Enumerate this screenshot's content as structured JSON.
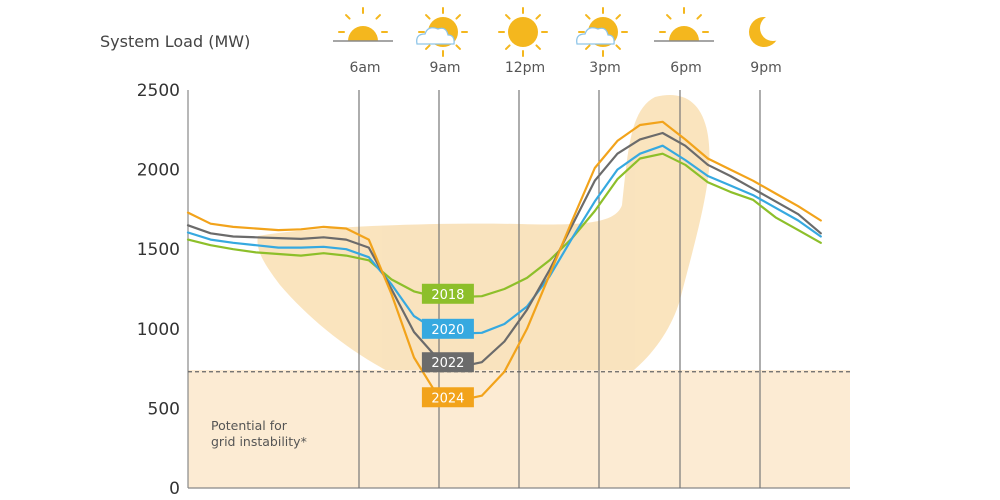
{
  "chart_data": {
    "type": "line",
    "ylabel": "System Load (MW)",
    "yticks": [
      "2500",
      "2000",
      "1500",
      "1000",
      "500",
      "0"
    ],
    "ylim": [
      0,
      2500
    ],
    "time_labels": [
      "6am",
      "9am",
      "12pm",
      "3pm",
      "6pm",
      "9pm"
    ],
    "time_icons": [
      "sunrise-icon",
      "partly-cloudy-icon",
      "sun-icon",
      "partly-cloudy-icon",
      "sunset-icon",
      "moon-icon"
    ],
    "threshold": 730,
    "threshold_note": [
      "Potential for",
      "grid instability*"
    ],
    "series": [
      {
        "name": "2018",
        "color": "#8dbf2a",
        "points": [
          [
            0,
            1560
          ],
          [
            1,
            1525
          ],
          [
            2,
            1500
          ],
          [
            3,
            1480
          ],
          [
            4,
            1470
          ],
          [
            5,
            1460
          ],
          [
            6,
            1475
          ],
          [
            7,
            1460
          ],
          [
            8,
            1430
          ],
          [
            9,
            1310
          ],
          [
            10,
            1235
          ],
          [
            11,
            1200
          ],
          [
            12,
            1200
          ],
          [
            13,
            1205
          ],
          [
            14,
            1250
          ],
          [
            15,
            1320
          ],
          [
            16,
            1430
          ],
          [
            17,
            1570
          ],
          [
            18,
            1740
          ],
          [
            19,
            1940
          ],
          [
            20,
            2070
          ],
          [
            21,
            2100
          ],
          [
            22,
            2030
          ],
          [
            23,
            1920
          ],
          [
            24,
            1860
          ],
          [
            25,
            1810
          ],
          [
            26,
            1700
          ],
          [
            27,
            1620
          ],
          [
            28,
            1540
          ]
        ]
      },
      {
        "name": "2020",
        "color": "#36a9e0",
        "points": [
          [
            0,
            1605
          ],
          [
            1,
            1560
          ],
          [
            2,
            1540
          ],
          [
            3,
            1525
          ],
          [
            4,
            1510
          ],
          [
            5,
            1510
          ],
          [
            6,
            1515
          ],
          [
            7,
            1500
          ],
          [
            8,
            1450
          ],
          [
            9,
            1280
          ],
          [
            10,
            1080
          ],
          [
            11,
            990
          ],
          [
            12,
            970
          ],
          [
            13,
            975
          ],
          [
            14,
            1030
          ],
          [
            15,
            1140
          ],
          [
            16,
            1330
          ],
          [
            17,
            1570
          ],
          [
            18,
            1800
          ],
          [
            19,
            2000
          ],
          [
            20,
            2100
          ],
          [
            21,
            2150
          ],
          [
            22,
            2060
          ],
          [
            23,
            1960
          ],
          [
            24,
            1900
          ],
          [
            25,
            1840
          ],
          [
            26,
            1760
          ],
          [
            27,
            1680
          ],
          [
            28,
            1580
          ]
        ]
      },
      {
        "name": "2022",
        "color": "#6b6b6b",
        "points": [
          [
            0,
            1650
          ],
          [
            1,
            1600
          ],
          [
            2,
            1580
          ],
          [
            3,
            1575
          ],
          [
            4,
            1570
          ],
          [
            5,
            1565
          ],
          [
            6,
            1575
          ],
          [
            7,
            1560
          ],
          [
            8,
            1510
          ],
          [
            9,
            1250
          ],
          [
            10,
            980
          ],
          [
            11,
            820
          ],
          [
            12,
            760
          ],
          [
            13,
            790
          ],
          [
            14,
            920
          ],
          [
            15,
            1120
          ],
          [
            16,
            1370
          ],
          [
            17,
            1650
          ],
          [
            18,
            1930
          ],
          [
            19,
            2100
          ],
          [
            20,
            2190
          ],
          [
            21,
            2230
          ],
          [
            22,
            2150
          ],
          [
            23,
            2030
          ],
          [
            24,
            1960
          ],
          [
            25,
            1880
          ],
          [
            26,
            1800
          ],
          [
            27,
            1720
          ],
          [
            28,
            1600
          ]
        ]
      },
      {
        "name": "2024",
        "color": "#f2a31b",
        "points": [
          [
            0,
            1730
          ],
          [
            1,
            1660
          ],
          [
            2,
            1640
          ],
          [
            3,
            1630
          ],
          [
            4,
            1620
          ],
          [
            5,
            1625
          ],
          [
            6,
            1640
          ],
          [
            7,
            1630
          ],
          [
            8,
            1560
          ],
          [
            9,
            1220
          ],
          [
            10,
            820
          ],
          [
            11,
            590
          ],
          [
            12,
            550
          ],
          [
            13,
            580
          ],
          [
            14,
            730
          ],
          [
            15,
            1000
          ],
          [
            16,
            1340
          ],
          [
            17,
            1680
          ],
          [
            18,
            2010
          ],
          [
            19,
            2180
          ],
          [
            20,
            2280
          ],
          [
            21,
            2300
          ],
          [
            22,
            2190
          ],
          [
            23,
            2070
          ],
          [
            24,
            2000
          ],
          [
            25,
            1930
          ],
          [
            26,
            1850
          ],
          [
            27,
            1770
          ],
          [
            28,
            1680
          ]
        ]
      }
    ],
    "label_positions": {
      "2018": [
        11.5,
        1220
      ],
      "2020": [
        11.5,
        1000
      ],
      "2022": [
        11.5,
        790
      ],
      "2024": [
        11.5,
        570
      ]
    },
    "grid": false
  }
}
